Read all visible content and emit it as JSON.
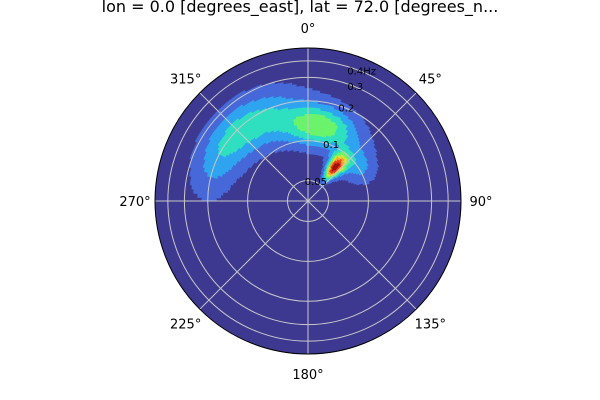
{
  "chart_data": {
    "type": "heatmap",
    "projection": "polar",
    "title": "lon = 0.0 [degrees_east], lat = 72.0 [degrees_n...",
    "theta_tick_labels": [
      "0°",
      "45°",
      "90°",
      "135°",
      "180°",
      "225°",
      "270°",
      "315°"
    ],
    "theta_ticks_deg": [
      0,
      45,
      90,
      135,
      180,
      225,
      270,
      315
    ],
    "theta_direction": "clockwise",
    "theta_zero_location": "top",
    "radial_scale": "log",
    "radial_tick_labels": [
      "0.05",
      "0.1",
      "0.2",
      "0.3",
      "0.4Hz"
    ],
    "radial_ticks": [
      0.05,
      0.1,
      0.2,
      0.3,
      0.4
    ],
    "radial_lim": [
      0.035,
      0.5
    ],
    "grid": true,
    "background_color": "#3d3991",
    "colormap": [
      "#3d3991",
      "#4668d8",
      "#2fa4f0",
      "#2ee0c0",
      "#6cf36c",
      "#d8e432",
      "#fca233",
      "#e8401d",
      "#a0140a"
    ],
    "blobs": [
      {
        "theta_deg": 39,
        "r": 0.074,
        "sigma_theta_deg": 7,
        "sigma_r_log": 0.08,
        "amplitude": 1.0
      },
      {
        "theta_deg": 10,
        "r": 0.13,
        "sigma_theta_deg": 20,
        "sigma_r_log": 0.11,
        "amplitude": 0.55
      },
      {
        "theta_deg": 325,
        "r": 0.18,
        "sigma_theta_deg": 22,
        "sigma_r_log": 0.14,
        "amplitude": 0.35
      },
      {
        "theta_deg": 295,
        "r": 0.2,
        "sigma_theta_deg": 18,
        "sigma_r_log": 0.12,
        "amplitude": 0.18
      },
      {
        "theta_deg": 55,
        "r": 0.1,
        "sigma_theta_deg": 12,
        "sigma_r_log": 0.09,
        "amplitude": 0.25
      }
    ]
  }
}
